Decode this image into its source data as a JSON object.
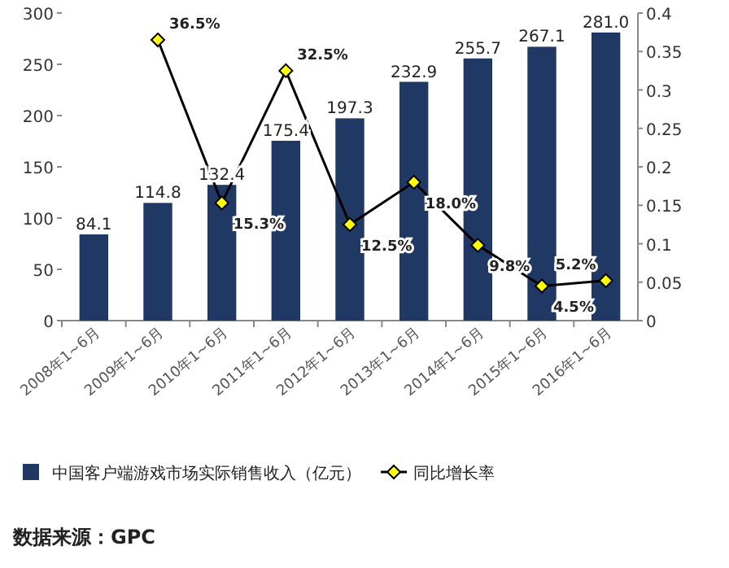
{
  "chart_data": {
    "type": "bar",
    "categories": [
      "2008年1~6月",
      "2009年1~6月",
      "2010年1~6月",
      "2011年1~6月",
      "2012年1~6月",
      "2013年1~6月",
      "2014年1~6月",
      "2015年1~6月",
      "2016年1~6月"
    ],
    "series": [
      {
        "name": "中国客户端游戏市场实际销售收入（亿元）",
        "color": "#1f3864",
        "values": [
          84.1,
          114.8,
          132.4,
          175.4,
          197.3,
          232.9,
          255.7,
          267.1,
          281.0
        ],
        "value_labels": [
          "84.1",
          "114.8",
          "132.4",
          "175.4",
          "197.3",
          "232.9",
          "255.7",
          "267.1",
          "281.0"
        ]
      },
      {
        "name": "同比增长率",
        "type": "line",
        "axis": "y2",
        "color": "#000000",
        "values": [
          null,
          0.365,
          0.153,
          0.325,
          0.125,
          0.18,
          0.098,
          0.045,
          0.052
        ],
        "value_labels": [
          null,
          "36.5%",
          "15.3%",
          "32.5%",
          "12.5%",
          "18.0%",
          "9.8%",
          "4.5%",
          "5.2%"
        ]
      }
    ],
    "ylim": [
      0,
      300
    ],
    "yticks": [
      0,
      50,
      100,
      150,
      200,
      250,
      300
    ],
    "y2lim": [
      0,
      0.4
    ],
    "y2ticks": [
      0,
      0.05,
      0.1,
      0.15,
      0.2,
      0.25,
      0.3,
      0.35,
      0.4
    ],
    "legend": "bottom",
    "marker": "diamond",
    "annotations": [
      "数据来源：GPC"
    ]
  }
}
